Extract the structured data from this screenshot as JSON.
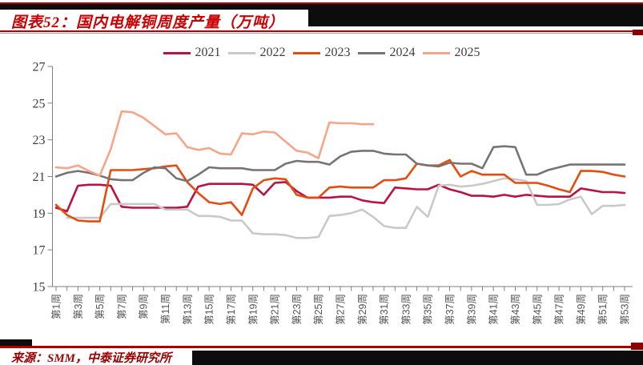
{
  "header": {
    "title": "图表52：国内电解铜周度产量（万吨）"
  },
  "footer": {
    "source": "来源：SMM，中泰证券研究所"
  },
  "colors": {
    "title_red": "#cc0000",
    "rule_red": "#b20000",
    "end_block_red": "#8b0000",
    "source_red": "#9c0000",
    "bar_black": "#0c0c0c",
    "axis_gray": "#808080",
    "y_tick_text": "#404040",
    "x_tick_text": "#555555"
  },
  "chart_data": {
    "type": "line",
    "title": "国内电解铜周度产量（万吨）",
    "xlabel": "",
    "ylabel": "",
    "ylim": [
      15,
      27
    ],
    "yticks": [
      15,
      17,
      19,
      21,
      23,
      25,
      27
    ],
    "grid": false,
    "legend_position": "top-center",
    "weeks_total": 53,
    "xtick_labels": [
      "第1周",
      "第3周",
      "第5周",
      "第7周",
      "第9周",
      "第11周",
      "第13周",
      "第15周",
      "第17周",
      "第19周",
      "第21周",
      "第23周",
      "第25周",
      "第27周",
      "第29周",
      "第31周",
      "第33周",
      "第35周",
      "第37周",
      "第39周",
      "第41周",
      "第43周",
      "第45周",
      "第47周",
      "第49周",
      "第51周",
      "第53周"
    ],
    "series": [
      {
        "name": "2021",
        "color": "#bd1043",
        "values": [
          19.3,
          19.1,
          20.5,
          20.55,
          20.55,
          20.5,
          19.35,
          19.3,
          19.3,
          19.3,
          19.3,
          19.3,
          19.35,
          20.45,
          20.6,
          20.6,
          20.6,
          20.6,
          20.55,
          20.0,
          20.65,
          20.7,
          20.2,
          19.85,
          19.85,
          19.85,
          19.9,
          19.9,
          19.7,
          19.6,
          19.55,
          20.4,
          20.35,
          20.3,
          20.3,
          20.55,
          20.3,
          20.15,
          19.95,
          19.95,
          19.9,
          20.0,
          19.9,
          20.0,
          19.95,
          19.9,
          19.9,
          19.9,
          20.35,
          20.25,
          20.15,
          20.15,
          20.1
        ]
      },
      {
        "name": "2022",
        "color": "#c9c9c9",
        "values": [
          null,
          18.75,
          18.75,
          18.75,
          18.75,
          19.5,
          19.5,
          19.5,
          19.5,
          19.5,
          19.2,
          19.2,
          19.2,
          18.85,
          18.85,
          18.8,
          18.6,
          18.6,
          17.9,
          17.85,
          17.85,
          17.8,
          17.65,
          17.65,
          17.7,
          18.85,
          18.9,
          19.0,
          19.2,
          18.8,
          18.3,
          18.2,
          18.2,
          19.35,
          18.8,
          20.5,
          20.55,
          20.45,
          20.5,
          20.6,
          20.75,
          20.9,
          20.85,
          20.75,
          19.45,
          19.45,
          19.5,
          19.75,
          19.9,
          18.95,
          19.4,
          19.4,
          19.45
        ]
      },
      {
        "name": "2023",
        "color": "#e64c0d",
        "values": [
          19.45,
          18.9,
          18.6,
          18.55,
          18.55,
          21.35,
          21.35,
          21.35,
          21.4,
          21.45,
          21.55,
          21.6,
          20.7,
          20.1,
          19.6,
          19.5,
          19.6,
          18.9,
          20.35,
          20.8,
          20.9,
          20.85,
          20.0,
          19.85,
          19.85,
          20.4,
          20.45,
          20.4,
          20.4,
          20.4,
          20.8,
          20.8,
          20.9,
          21.7,
          21.6,
          21.6,
          21.9,
          21.0,
          21.3,
          21.1,
          21.1,
          21.1,
          20.65,
          20.65,
          20.65,
          20.5,
          20.3,
          20.15,
          21.3,
          21.3,
          21.25,
          21.1,
          21.0
        ]
      },
      {
        "name": "2024",
        "color": "#787272",
        "values": [
          21.0,
          21.2,
          21.3,
          21.2,
          21.05,
          20.85,
          20.8,
          20.8,
          21.2,
          21.5,
          21.45,
          20.9,
          20.75,
          21.1,
          21.5,
          21.45,
          21.45,
          21.45,
          21.35,
          21.35,
          21.35,
          21.7,
          21.85,
          21.8,
          21.8,
          21.65,
          22.1,
          22.35,
          22.4,
          22.4,
          22.25,
          22.2,
          22.2,
          21.7,
          21.6,
          21.55,
          21.75,
          21.7,
          21.7,
          21.45,
          22.6,
          22.65,
          22.6,
          21.1,
          21.1,
          21.35,
          21.5,
          21.65,
          21.65,
          21.65,
          21.65,
          21.65,
          21.65
        ]
      },
      {
        "name": "2025",
        "color": "#f7a489",
        "values": [
          21.5,
          21.45,
          21.6,
          21.3,
          21.05,
          22.5,
          24.55,
          24.5,
          24.2,
          23.75,
          23.3,
          23.35,
          22.6,
          22.45,
          22.55,
          22.25,
          22.2,
          23.35,
          23.3,
          23.45,
          23.4,
          22.9,
          22.4,
          22.3,
          22.0,
          23.95,
          23.9,
          23.9,
          23.85,
          23.85
        ]
      }
    ]
  }
}
